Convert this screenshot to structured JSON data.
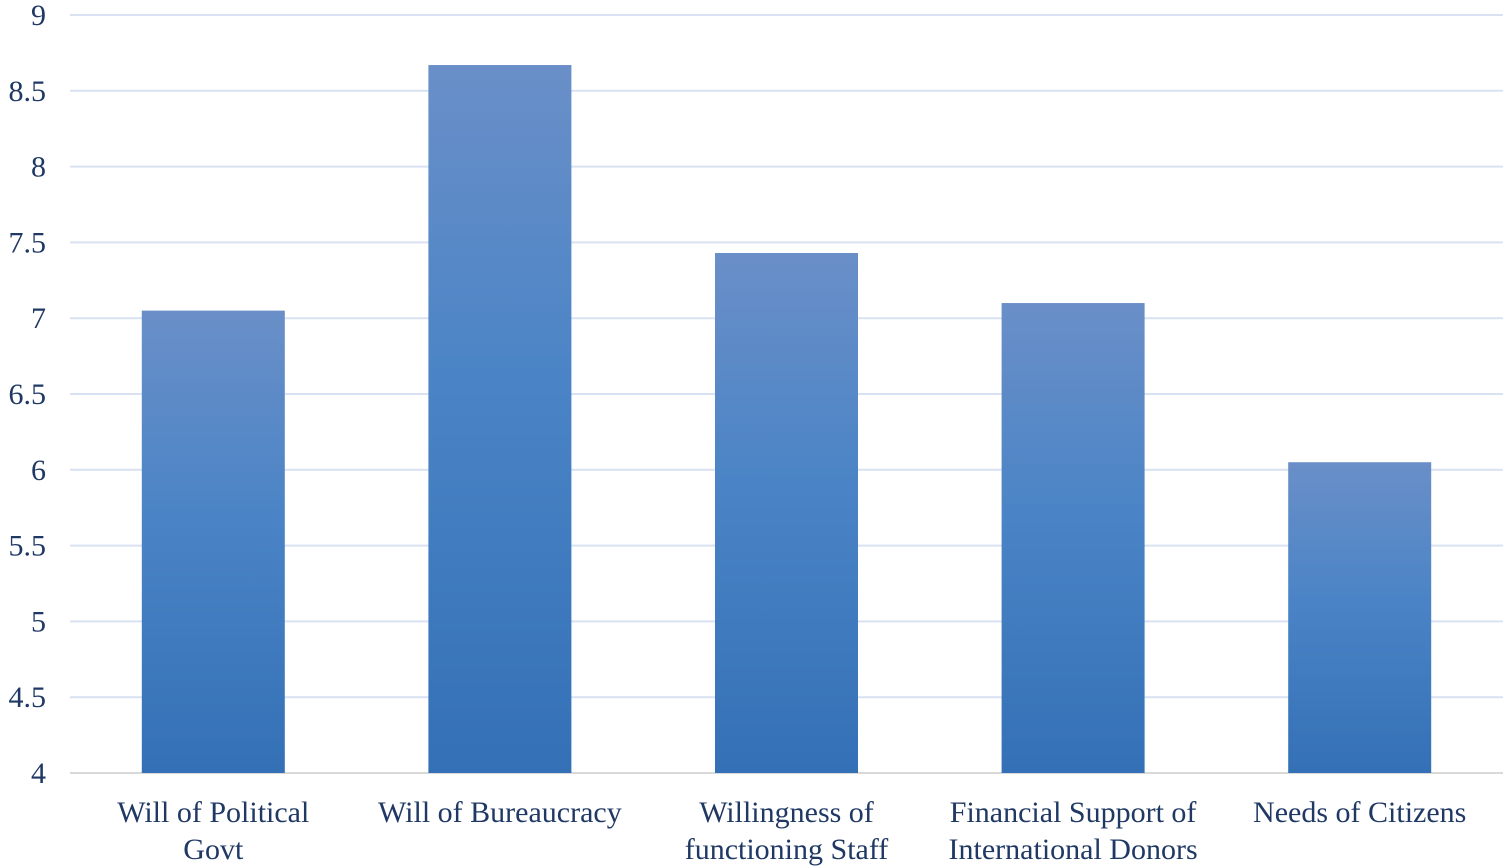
{
  "chart_data": {
    "type": "bar",
    "categories": [
      [
        "Will of Political",
        "Govt"
      ],
      [
        "Will of Bureaucracy"
      ],
      [
        "Willingness of",
        "functioning Staff"
      ],
      [
        "Financial Support of",
        "International Donors"
      ],
      [
        "Needs of Citizens"
      ]
    ],
    "values": [
      7.05,
      8.67,
      7.43,
      7.1,
      6.05
    ],
    "ylim": [
      4,
      9
    ],
    "yticks": [
      "4",
      "4.5",
      "5",
      "5.5",
      "6",
      "6.5",
      "7",
      "7.5",
      "8",
      "8.5",
      "9"
    ],
    "grid": true,
    "title": "",
    "xlabel": "",
    "ylabel": "",
    "bar_color_top": "#6a8fc8",
    "bar_color_bottom": "#3470b6"
  }
}
